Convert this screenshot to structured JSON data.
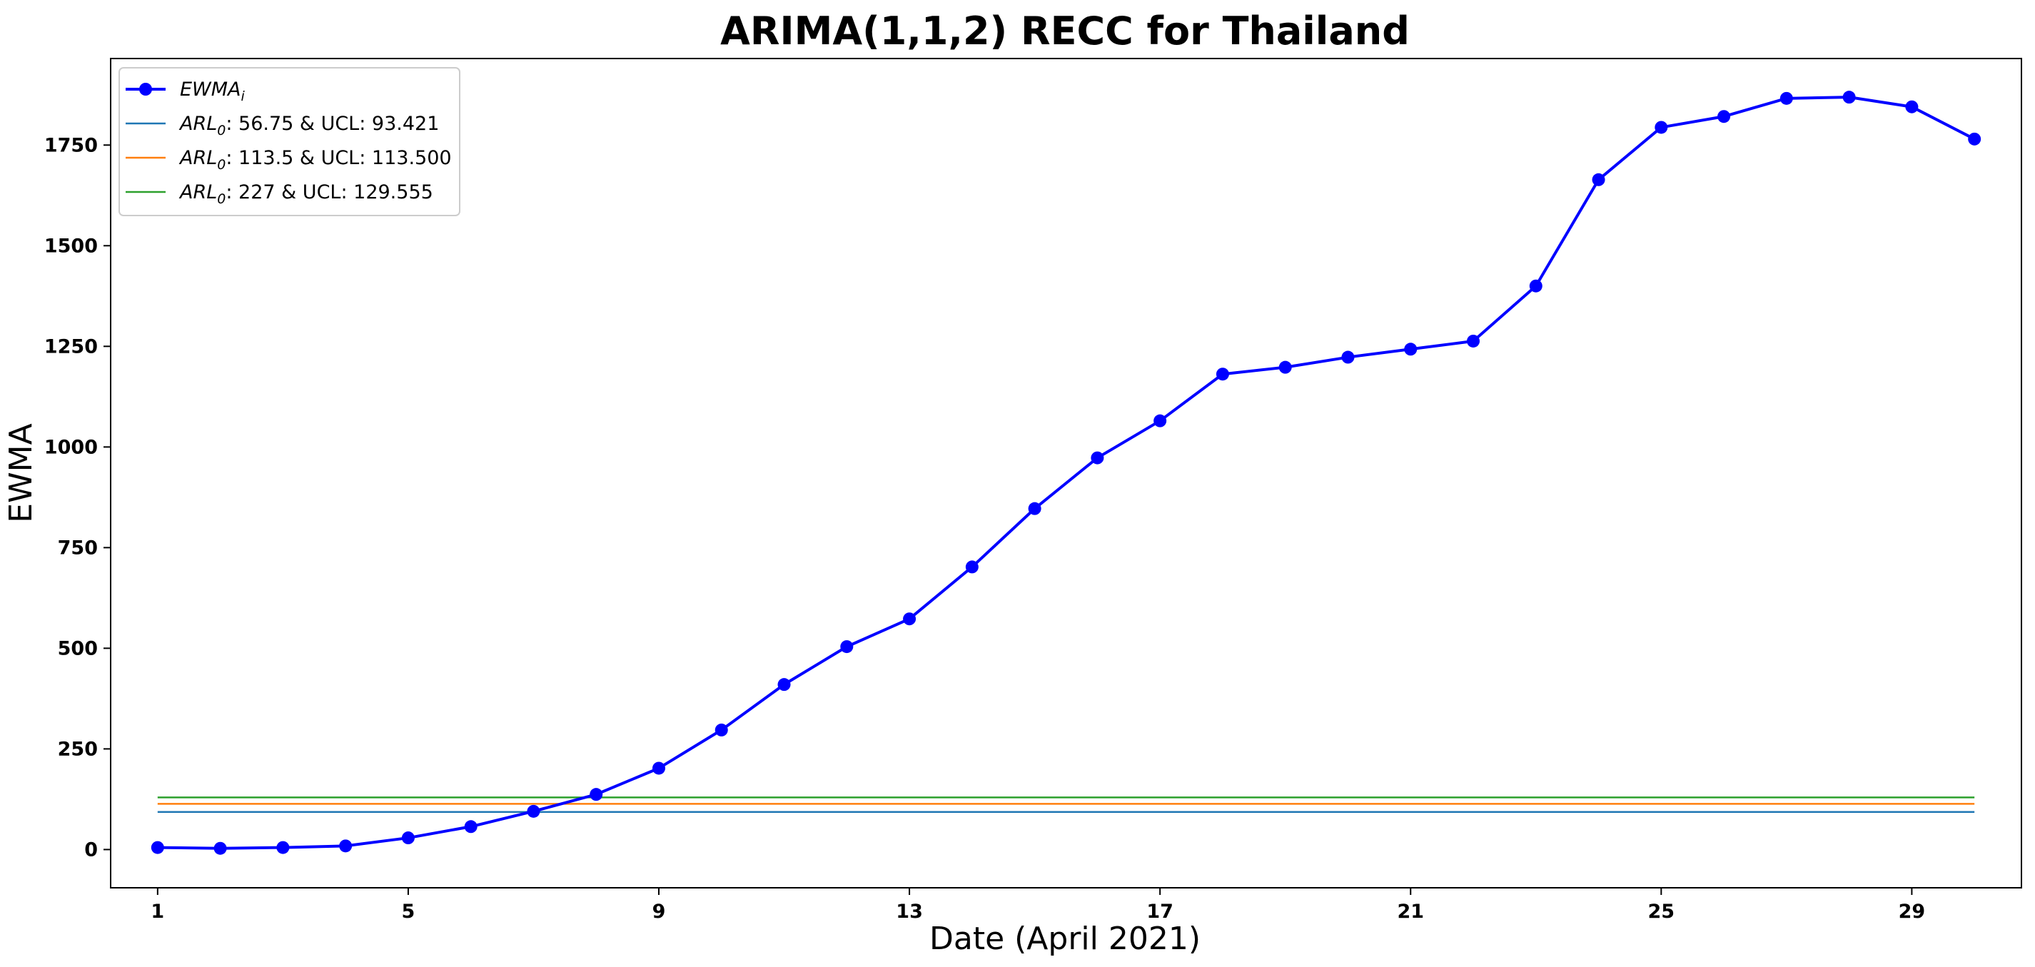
{
  "chart_data": {
    "type": "line",
    "title": "ARIMA(1,1,2) RECC for Thailand",
    "xlabel": "Date (April 2021)",
    "ylabel": "EWMA",
    "xlim": [
      0.25,
      30.75
    ],
    "ylim": [
      -95,
      1965
    ],
    "xticks": [
      1,
      5,
      9,
      13,
      17,
      21,
      25,
      29
    ],
    "yticks": [
      0,
      250,
      500,
      750,
      1000,
      1250,
      1500,
      1750
    ],
    "grid": false,
    "legend_position": "top-left",
    "x": [
      1,
      2,
      3,
      4,
      5,
      6,
      7,
      8,
      9,
      10,
      11,
      12,
      13,
      14,
      15,
      16,
      17,
      18,
      19,
      20,
      21,
      22,
      23,
      24,
      25,
      26,
      27,
      28,
      29,
      30
    ],
    "series": [
      {
        "name": "EWMA",
        "name_subscript": "i",
        "color": "#0000ff",
        "marker": "circle",
        "values": [
          5,
          3,
          5,
          9,
          29,
          57,
          95,
          137,
          202,
          297,
          410,
          504,
          573,
          702,
          847,
          973,
          1065,
          1181,
          1198,
          1223,
          1243,
          1263,
          1400,
          1664,
          1794,
          1821,
          1866,
          1869,
          1845,
          1765
        ]
      }
    ],
    "control_limits": [
      {
        "label_symbol": "ARL",
        "label_subscript": "0",
        "label_text": ": 56.75 & UCL: 93.421",
        "value": 93.421,
        "color": "#1f77b4"
      },
      {
        "label_symbol": "ARL",
        "label_subscript": "0",
        "label_text": ": 113.5 & UCL: 113.500",
        "value": 113.5,
        "color": "#ff7f0e"
      },
      {
        "label_symbol": "ARL",
        "label_subscript": "0",
        "label_text": ": 227 & UCL: 129.555",
        "value": 129.555,
        "color": "#2ca02c"
      }
    ],
    "control_limits_x_range": [
      1,
      30
    ]
  }
}
